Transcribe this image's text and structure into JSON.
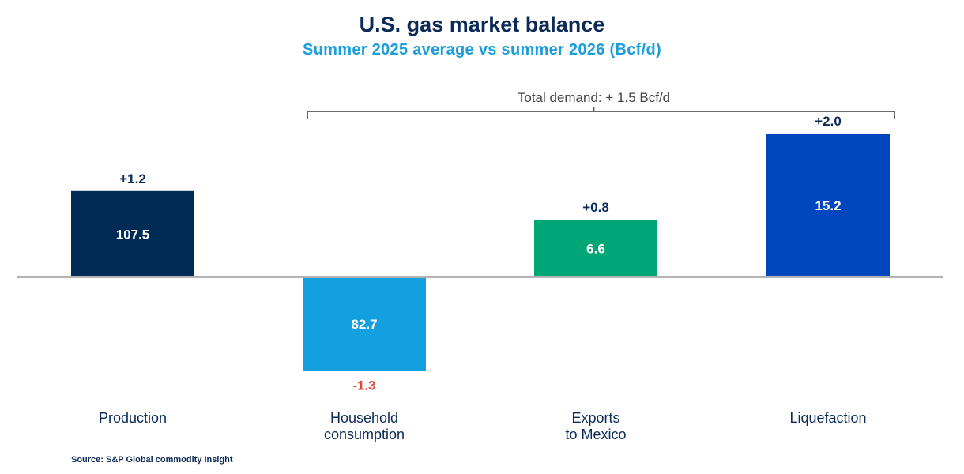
{
  "title": "U.S. gas market balance",
  "subtitle": "Summer 2025 average vs summer 2026 (Bcf/d)",
  "source": "Source: S&P Global commodity Insight",
  "chart_data": {
    "type": "bar",
    "title": "U.S. gas market balance",
    "subtitle": "Summer 2025 average vs summer 2026 (Bcf/d)",
    "categories": [
      "Production",
      "Household\nconsumption",
      "Exports\nto Mexico",
      "Liquefaction"
    ],
    "values": [
      1.2,
      -1.3,
      0.8,
      2.0
    ],
    "value_labels": [
      "+1.2",
      "-1.3",
      "+0.8",
      "+2.0"
    ],
    "bar_labels": [
      "107.5",
      "82.7",
      "6.6",
      "15.2"
    ],
    "colors": [
      "#002b57",
      "#14a0e0",
      "#00a676",
      "#0046be"
    ],
    "negative_label_color": "#e2473b",
    "positive_label_color": "#0b2a57",
    "ylim": [
      -1.6,
      2.4
    ],
    "grid": false,
    "annotation": "Total demand: + 1.5 Bcf/d"
  }
}
